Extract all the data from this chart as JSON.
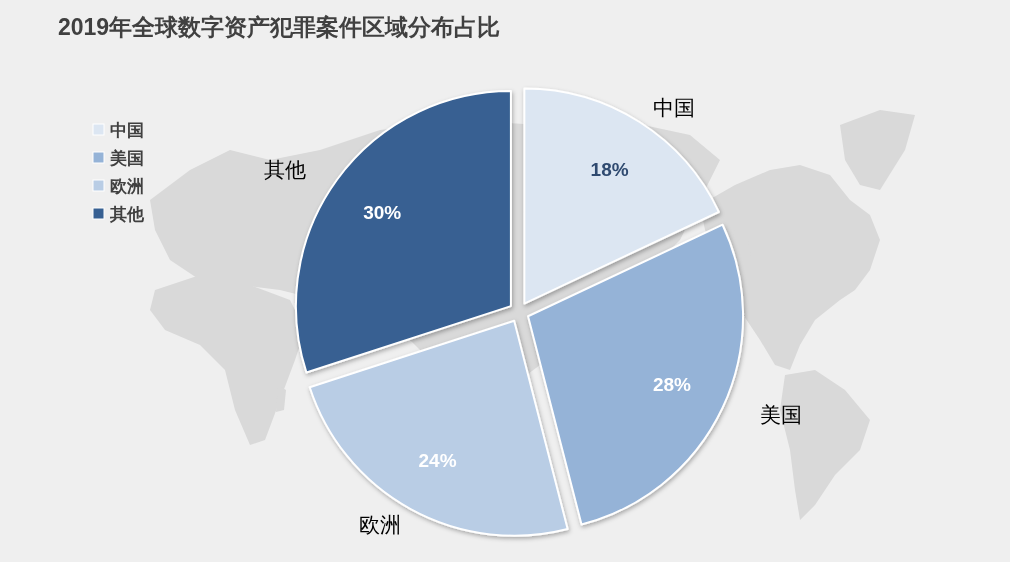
{
  "chart_data": {
    "type": "pie",
    "title": "2019年全球数字资产犯罪案件区域分布占比",
    "categories": [
      "中国",
      "美国",
      "欧洲",
      "其他"
    ],
    "values": [
      18,
      28,
      24,
      30
    ],
    "colors": [
      "#dce6f2",
      "#95b3d7",
      "#b9cde5",
      "#376092"
    ],
    "value_labels": [
      "18%",
      "28%",
      "24%",
      "30%"
    ],
    "legend": "top left"
  }
}
